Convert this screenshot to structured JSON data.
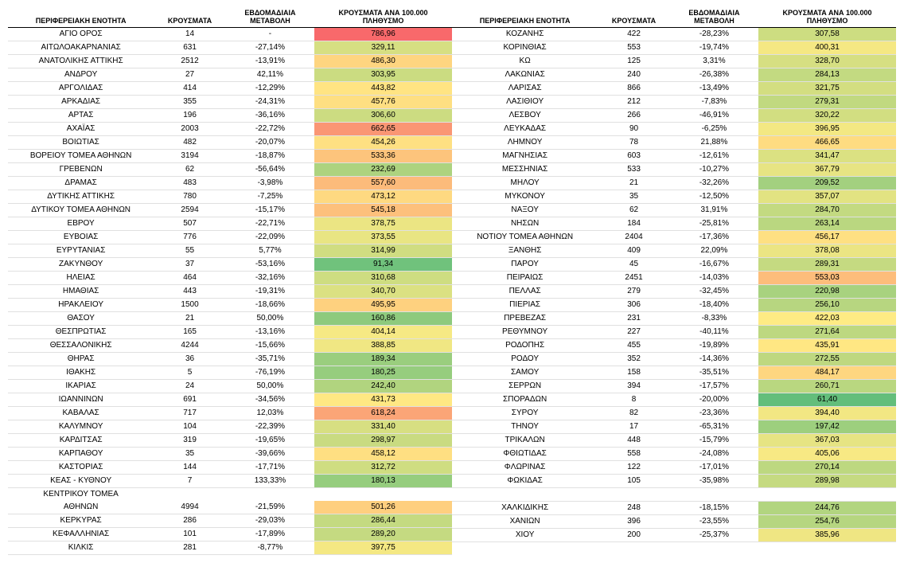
{
  "headers": {
    "region": "ΠΕΡΙΦΕΡΕΙΑΚΗ ΕΝΟΤΗΤΑ",
    "cases": "ΚΡΟΥΣΜΑΤΑ",
    "delta": "ΕΒΔΟΜΑΔΙΑΙΑ ΜΕΤΑΒΟΛΗ",
    "rate": "ΚΡΟΥΣΜΑΤΑ ΑΝΑ 100.000 ΠΛΗΘΥΣΜΟ"
  },
  "color_scale": {
    "min_color": "#63be7b",
    "mid_color": "#ffeb84",
    "max_color": "#f8696b",
    "min_value": 61.4,
    "max_value": 786.96
  },
  "style": {
    "font_family": "Arial",
    "header_fontsize": 9,
    "cell_fontsize": 10,
    "row_border_color": "#e0e0e0",
    "header_border_color": "#000000",
    "background": "#ffffff"
  },
  "left": [
    {
      "region": "ΑΓΙΟ ΟΡΟΣ",
      "cases": "14",
      "delta": "-",
      "rate": "786,96"
    },
    {
      "region": "ΑΙΤΩΛΟΑΚΑΡΝΑΝΙΑΣ",
      "cases": "631",
      "delta": "-27,14%",
      "rate": "329,11"
    },
    {
      "region": "ΑΝΑΤΟΛΙΚΗΣ ΑΤΤΙΚΗΣ",
      "cases": "2512",
      "delta": "-13,91%",
      "rate": "486,30"
    },
    {
      "region": "ΑΝΔΡΟΥ",
      "cases": "27",
      "delta": "42,11%",
      "rate": "303,95"
    },
    {
      "region": "ΑΡΓΟΛΙΔΑΣ",
      "cases": "414",
      "delta": "-12,29%",
      "rate": "443,82"
    },
    {
      "region": "ΑΡΚΑΔΙΑΣ",
      "cases": "355",
      "delta": "-24,31%",
      "rate": "457,76"
    },
    {
      "region": "ΑΡΤΑΣ",
      "cases": "196",
      "delta": "-36,16%",
      "rate": "306,60"
    },
    {
      "region": "ΑΧΑΪΑΣ",
      "cases": "2003",
      "delta": "-22,72%",
      "rate": "662,65"
    },
    {
      "region": "ΒΟΙΩΤΙΑΣ",
      "cases": "482",
      "delta": "-20,07%",
      "rate": "454,26"
    },
    {
      "region": "ΒΟΡΕΙΟΥ ΤΟΜΕΑ ΑΘΗΝΩΝ",
      "cases": "3194",
      "delta": "-18,87%",
      "rate": "533,36"
    },
    {
      "region": "ΓΡΕΒΕΝΩΝ",
      "cases": "62",
      "delta": "-56,64%",
      "rate": "232,69"
    },
    {
      "region": "ΔΡΑΜΑΣ",
      "cases": "483",
      "delta": "-3,98%",
      "rate": "557,60"
    },
    {
      "region": "ΔΥΤΙΚΗΣ ΑΤΤΙΚΗΣ",
      "cases": "780",
      "delta": "-7,25%",
      "rate": "473,12"
    },
    {
      "region": "ΔΥΤΙΚΟΥ ΤΟΜΕΑ ΑΘΗΝΩΝ",
      "cases": "2594",
      "delta": "-15,17%",
      "rate": "545,18"
    },
    {
      "region": "ΕΒΡΟΥ",
      "cases": "507",
      "delta": "-22,71%",
      "rate": "378,75"
    },
    {
      "region": "ΕΥΒΟΙΑΣ",
      "cases": "776",
      "delta": "-22,09%",
      "rate": "373,55"
    },
    {
      "region": "ΕΥΡΥΤΑΝΙΑΣ",
      "cases": "55",
      "delta": "5,77%",
      "rate": "314,99"
    },
    {
      "region": "ΖΑΚΥΝΘΟΥ",
      "cases": "37",
      "delta": "-53,16%",
      "rate": "91,34"
    },
    {
      "region": "ΗΛΕΙΑΣ",
      "cases": "464",
      "delta": "-32,16%",
      "rate": "310,68"
    },
    {
      "region": "ΗΜΑΘΙΑΣ",
      "cases": "443",
      "delta": "-19,31%",
      "rate": "340,70"
    },
    {
      "region": "ΗΡΑΚΛΕΙΟΥ",
      "cases": "1500",
      "delta": "-18,66%",
      "rate": "495,95"
    },
    {
      "region": "ΘΑΣΟΥ",
      "cases": "21",
      "delta": "50,00%",
      "rate": "160,86"
    },
    {
      "region": "ΘΕΣΠΡΩΤΙΑΣ",
      "cases": "165",
      "delta": "-13,16%",
      "rate": "404,14"
    },
    {
      "region": "ΘΕΣΣΑΛΟΝΙΚΗΣ",
      "cases": "4244",
      "delta": "-15,66%",
      "rate": "388,85"
    },
    {
      "region": "ΘΗΡΑΣ",
      "cases": "36",
      "delta": "-35,71%",
      "rate": "189,34"
    },
    {
      "region": "ΙΘΑΚΗΣ",
      "cases": "5",
      "delta": "-76,19%",
      "rate": "180,25"
    },
    {
      "region": "ΙΚΑΡΙΑΣ",
      "cases": "24",
      "delta": "50,00%",
      "rate": "242,40"
    },
    {
      "region": "ΙΩΑΝΝΙΝΩΝ",
      "cases": "691",
      "delta": "-34,56%",
      "rate": "431,73"
    },
    {
      "region": "ΚΑΒΑΛΑΣ",
      "cases": "717",
      "delta": "12,03%",
      "rate": "618,24"
    },
    {
      "region": "ΚΑΛΥΜΝΟΥ",
      "cases": "104",
      "delta": "-22,39%",
      "rate": "331,40"
    },
    {
      "region": "ΚΑΡΔΙΤΣΑΣ",
      "cases": "319",
      "delta": "-19,65%",
      "rate": "298,97"
    },
    {
      "region": "ΚΑΡΠΑΘΟΥ",
      "cases": "35",
      "delta": "-39,66%",
      "rate": "458,12"
    },
    {
      "region": "ΚΑΣΤΟΡΙΑΣ",
      "cases": "144",
      "delta": "-17,71%",
      "rate": "312,72"
    },
    {
      "region": "ΚΕΑΣ - ΚΥΘΝΟΥ",
      "cases": "7",
      "delta": "133,33%",
      "rate": "180,13"
    },
    {
      "region": "ΚΕΝΤΡΙΚΟΥ ΤΟΜΕΑ ΑΘΗΝΩΝ",
      "cases": "4994",
      "delta": "-21,59%",
      "rate": "501,26",
      "wrap": true
    },
    {
      "region": "ΚΕΡΚΥΡΑΣ",
      "cases": "286",
      "delta": "-29,03%",
      "rate": "286,44"
    },
    {
      "region": "ΚΕΦΑΛΛΗΝΙΑΣ",
      "cases": "101",
      "delta": "-17,89%",
      "rate": "289,20"
    },
    {
      "region": "ΚΙΛΚΙΣ",
      "cases": "281",
      "delta": "-8,77%",
      "rate": "397,75"
    }
  ],
  "right": [
    {
      "region": "ΚΟΖΑΝΗΣ",
      "cases": "422",
      "delta": "-28,23%",
      "rate": "307,58"
    },
    {
      "region": "ΚΟΡΙΝΘΙΑΣ",
      "cases": "553",
      "delta": "-19,74%",
      "rate": "400,31"
    },
    {
      "region": "ΚΩ",
      "cases": "125",
      "delta": "3,31%",
      "rate": "328,70"
    },
    {
      "region": "ΛΑΚΩΝΙΑΣ",
      "cases": "240",
      "delta": "-26,38%",
      "rate": "284,13"
    },
    {
      "region": "ΛΑΡΙΣΑΣ",
      "cases": "866",
      "delta": "-13,49%",
      "rate": "321,75"
    },
    {
      "region": "ΛΑΣΙΘΙΟΥ",
      "cases": "212",
      "delta": "-7,83%",
      "rate": "279,31"
    },
    {
      "region": "ΛΕΣΒΟΥ",
      "cases": "266",
      "delta": "-46,91%",
      "rate": "320,22"
    },
    {
      "region": "ΛΕΥΚΑΔΑΣ",
      "cases": "90",
      "delta": "-6,25%",
      "rate": "396,95"
    },
    {
      "region": "ΛΗΜΝΟΥ",
      "cases": "78",
      "delta": "21,88%",
      "rate": "466,65"
    },
    {
      "region": "ΜΑΓΝΗΣΙΑΣ",
      "cases": "603",
      "delta": "-12,61%",
      "rate": "341,47"
    },
    {
      "region": "ΜΕΣΣΗΝΙΑΣ",
      "cases": "533",
      "delta": "-10,27%",
      "rate": "367,79"
    },
    {
      "region": "ΜΗΛΟΥ",
      "cases": "21",
      "delta": "-32,26%",
      "rate": "209,52"
    },
    {
      "region": "ΜΥΚΟΝΟΥ",
      "cases": "35",
      "delta": "-12,50%",
      "rate": "357,07"
    },
    {
      "region": "ΝΑΞΟΥ",
      "cases": "62",
      "delta": "31,91%",
      "rate": "284,70"
    },
    {
      "region": "ΝΗΣΩΝ",
      "cases": "184",
      "delta": "-25,81%",
      "rate": "263,14"
    },
    {
      "region": "ΝΟΤΙΟΥ ΤΟΜΕΑ ΑΘΗΝΩΝ",
      "cases": "2404",
      "delta": "-17,36%",
      "rate": "456,17"
    },
    {
      "region": "ΞΑΝΘΗΣ",
      "cases": "409",
      "delta": "22,09%",
      "rate": "378,08"
    },
    {
      "region": "ΠΑΡΟΥ",
      "cases": "45",
      "delta": "-16,67%",
      "rate": "289,31"
    },
    {
      "region": "ΠΕΙΡΑΙΩΣ",
      "cases": "2451",
      "delta": "-14,03%",
      "rate": "553,03"
    },
    {
      "region": "ΠΕΛΛΑΣ",
      "cases": "279",
      "delta": "-32,45%",
      "rate": "220,98"
    },
    {
      "region": "ΠΙΕΡΙΑΣ",
      "cases": "306",
      "delta": "-18,40%",
      "rate": "256,10"
    },
    {
      "region": "ΠΡΕΒΕΖΑΣ",
      "cases": "231",
      "delta": "-8,33%",
      "rate": "422,03"
    },
    {
      "region": "ΡΕΘΥΜΝΟΥ",
      "cases": "227",
      "delta": "-40,11%",
      "rate": "271,64"
    },
    {
      "region": "ΡΟΔΟΠΗΣ",
      "cases": "455",
      "delta": "-19,89%",
      "rate": "435,91"
    },
    {
      "region": "ΡΟΔΟΥ",
      "cases": "352",
      "delta": "-14,36%",
      "rate": "272,55"
    },
    {
      "region": "ΣΑΜΟΥ",
      "cases": "158",
      "delta": "-35,51%",
      "rate": "484,17"
    },
    {
      "region": "ΣΕΡΡΩΝ",
      "cases": "394",
      "delta": "-17,57%",
      "rate": "260,71"
    },
    {
      "region": "ΣΠΟΡΑΔΩΝ",
      "cases": "8",
      "delta": "-20,00%",
      "rate": "61,40"
    },
    {
      "region": "ΣΥΡΟΥ",
      "cases": "82",
      "delta": "-23,36%",
      "rate": "394,40"
    },
    {
      "region": "ΤΗΝΟΥ",
      "cases": "17",
      "delta": "-65,31%",
      "rate": "197,42"
    },
    {
      "region": "ΤΡΙΚΑΛΩΝ",
      "cases": "448",
      "delta": "-15,79%",
      "rate": "367,03"
    },
    {
      "region": "ΦΘΙΩΤΙΔΑΣ",
      "cases": "558",
      "delta": "-24,08%",
      "rate": "405,06"
    },
    {
      "region": "ΦΛΩΡΙΝΑΣ",
      "cases": "122",
      "delta": "-17,01%",
      "rate": "270,14"
    },
    {
      "region": "ΦΩΚΙΔΑΣ",
      "cases": "105",
      "delta": "-35,98%",
      "rate": "289,98"
    },
    {
      "region": "",
      "cases": "",
      "delta": "",
      "rate": "",
      "blank": true
    },
    {
      "region": "ΧΑΛΚΙΔΙΚΗΣ",
      "cases": "248",
      "delta": "-18,15%",
      "rate": "244,76"
    },
    {
      "region": "ΧΑΝΙΩΝ",
      "cases": "396",
      "delta": "-23,55%",
      "rate": "254,76"
    },
    {
      "region": "ΧΙΟΥ",
      "cases": "200",
      "delta": "-25,37%",
      "rate": "385,96"
    }
  ]
}
